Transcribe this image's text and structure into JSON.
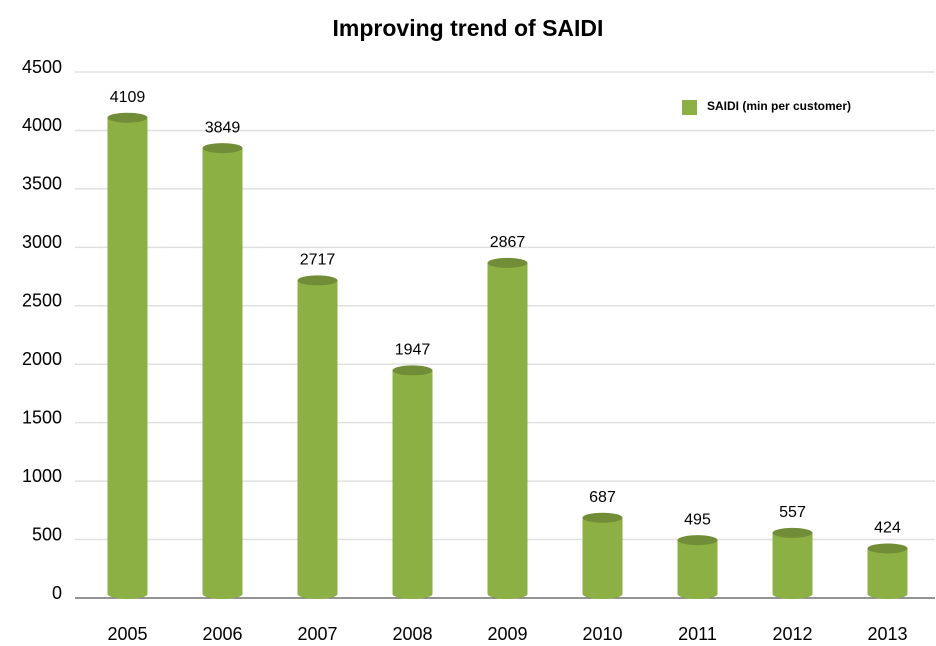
{
  "chart_data": {
    "type": "bar",
    "title": "Improving trend of SAIDI",
    "categories": [
      "2005",
      "2006",
      "2007",
      "2008",
      "2009",
      "2010",
      "2011",
      "2012",
      "2013"
    ],
    "series": [
      {
        "name": "SAIDI (min per customer)",
        "color": "#8db045",
        "values": [
          4109,
          3849,
          2717,
          1947,
          2867,
          687,
          495,
          557,
          424
        ]
      }
    ],
    "ylim": [
      0,
      4500
    ],
    "yticks": [
      0,
      500,
      1000,
      1500,
      2000,
      2500,
      3000,
      3500,
      4000,
      4500
    ],
    "grid": true,
    "legend": "upper right"
  }
}
